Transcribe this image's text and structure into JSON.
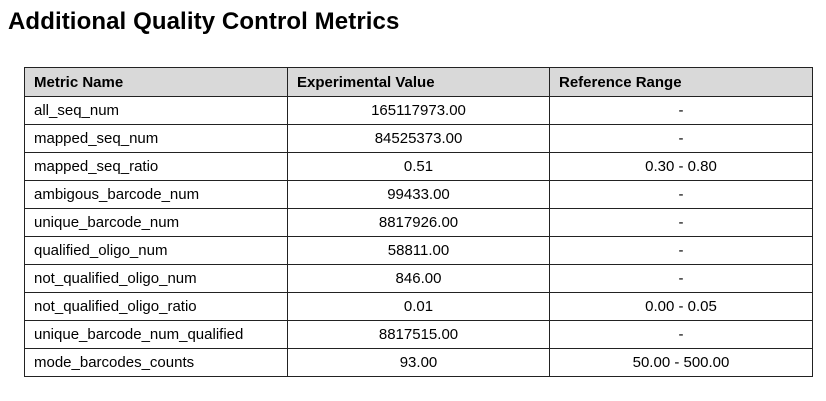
{
  "page": {
    "title": "Additional Quality Control Metrics"
  },
  "table": {
    "headers": {
      "metric": "Metric Name",
      "value": "Experimental Value",
      "range": "Reference Range"
    },
    "rows": [
      {
        "metric": "all_seq_num",
        "value": "165117973.00",
        "range": "-"
      },
      {
        "metric": "mapped_seq_num",
        "value": "84525373.00",
        "range": "-"
      },
      {
        "metric": "mapped_seq_ratio",
        "value": "0.51",
        "range": "0.30 - 0.80"
      },
      {
        "metric": "ambigous_barcode_num",
        "value": "99433.00",
        "range": "-"
      },
      {
        "metric": "unique_barcode_num",
        "value": "8817926.00",
        "range": "-"
      },
      {
        "metric": "qualified_oligo_num",
        "value": "58811.00",
        "range": "-"
      },
      {
        "metric": "not_qualified_oligo_num",
        "value": "846.00",
        "range": "-"
      },
      {
        "metric": "not_qualified_oligo_ratio",
        "value": "0.01",
        "range": "0.00 - 0.05"
      },
      {
        "metric": "unique_barcode_num_qualified",
        "value": "8817515.00",
        "range": "-"
      },
      {
        "metric": "mode_barcodes_counts",
        "value": "93.00",
        "range": "50.00 - 500.00"
      }
    ]
  },
  "colors": {
    "header_background": "#d9d9d9",
    "border": "#222222"
  }
}
